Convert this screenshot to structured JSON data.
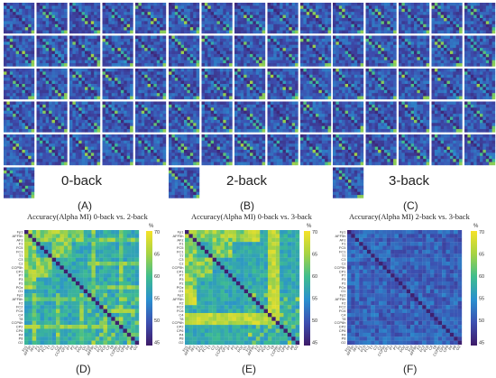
{
  "chart_data": [
    {
      "type": "heatmap",
      "panel": "(A)",
      "title": "0-back",
      "grid_rows": 5,
      "grid_cols": 5,
      "extra_matrices": 1,
      "colormap": [
        "#3e1b68",
        "#3d4fb0",
        "#2a90cf",
        "#3fbd8e",
        "#a6d343",
        "#f6e228"
      ]
    },
    {
      "type": "heatmap",
      "panel": "(B)",
      "title": "2-back",
      "grid_rows": 5,
      "grid_cols": 5,
      "extra_matrices": 1,
      "colormap": [
        "#3e1b68",
        "#3d4fb0",
        "#2a90cf",
        "#3fbd8e",
        "#a6d343",
        "#f6e228"
      ]
    },
    {
      "type": "heatmap",
      "panel": "(C)",
      "title": "3-back",
      "grid_rows": 5,
      "grid_cols": 5,
      "extra_matrices": 1,
      "colormap": [
        "#3e1b68",
        "#3d4fb0",
        "#2a90cf",
        "#3fbd8e",
        "#a6d343",
        "#f6e228"
      ]
    },
    {
      "type": "heatmap",
      "panel": "(D)",
      "title": "Accuracy(Alpha MI) 0-back vs. 2-back",
      "colorbar_unit": "%",
      "colorbar_ticks": [
        45,
        50,
        55,
        60,
        65,
        70
      ],
      "clim": [
        45,
        70
      ],
      "y_labels": [
        "Fp1",
        "AFF5h",
        "AFz",
        "F1",
        "FC5",
        "FC1",
        "T7",
        "C3",
        "Cz",
        "CCP5h",
        "CP1",
        "P7",
        "P3",
        "Pz",
        "POz",
        "O1",
        "Fp2",
        "AFF6h",
        "F2",
        "FC2",
        "FC6",
        "C4",
        "T8",
        "CCP6h",
        "CP2",
        "CP6",
        "P4",
        "P8",
        "O2"
      ],
      "x_labels": [
        "Fp1",
        "AFF5h",
        "AFz",
        "F1",
        "FC5",
        "FC1",
        "T7",
        "C3",
        "Cz",
        "CCP5h",
        "CP1",
        "P7",
        "P3",
        "Pz",
        "POz",
        "O1",
        "Fp2",
        "AFF6h",
        "F2",
        "FC2",
        "FC6",
        "C4",
        "T8",
        "CCP6h",
        "CP2",
        "CP6",
        "P4",
        "P8",
        "O2"
      ]
    },
    {
      "type": "heatmap",
      "panel": "(E)",
      "title": "Accuracy(Alpha MI) 0-back vs. 3-back",
      "colorbar_unit": "%",
      "colorbar_ticks": [
        45,
        50,
        55,
        60,
        65,
        70
      ],
      "clim": [
        45,
        70
      ]
    },
    {
      "type": "heatmap",
      "panel": "(F)",
      "title": "Accuracy(Alpha MI) 2-back vs. 3-back",
      "colorbar_unit": "%",
      "colorbar_ticks": [
        45,
        50,
        55,
        60,
        65,
        70
      ],
      "clim": [
        45,
        70
      ]
    }
  ],
  "labels": {
    "A": "(A)",
    "B": "(B)",
    "C": "(C)",
    "D": "(D)",
    "E": "(E)",
    "F": "(F)",
    "t0": "0-back",
    "t2": "2-back",
    "t3": "3-back",
    "tD": "Accuracy(Alpha MI) 0-back vs. 2-back",
    "tE": "Accuracy(Alpha MI) 0-back vs. 3-back",
    "tF": "Accuracy(Alpha MI) 2-back vs. 3-back",
    "unit": "%",
    "ticks": [
      "70",
      "65",
      "60",
      "55",
      "50",
      "45"
    ]
  }
}
